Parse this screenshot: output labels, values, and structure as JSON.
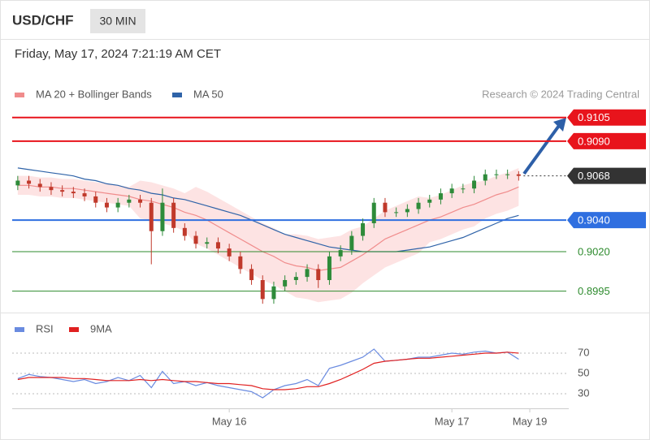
{
  "header": {
    "symbol": "USD/CHF",
    "interval": "30 MIN",
    "timestamp": "Friday, May 17, 2024 7:21:19 AM CET"
  },
  "chart_data": [
    {
      "type": "candlestick",
      "credit": "Research © 2024 Trading Central",
      "up_color": "#2e8b3a",
      "down_color": "#c0392b",
      "open": [
        0.9062,
        0.9065,
        0.9063,
        0.9061,
        0.9059,
        0.9058,
        0.9057,
        0.9055,
        0.9051,
        0.9048,
        0.9051,
        0.9053,
        0.9051,
        0.9033,
        0.9051,
        0.9035,
        0.903,
        0.9025,
        0.9026,
        0.9022,
        0.9017,
        0.9009,
        0.9002,
        0.899,
        0.8998,
        0.9002,
        0.9004,
        0.9009,
        0.9002,
        0.9017,
        0.9021,
        0.903,
        0.9038,
        0.9051,
        0.9045,
        0.9045,
        0.9047,
        0.9051,
        0.9053,
        0.9057,
        0.906,
        0.906,
        0.9065,
        0.9069,
        0.9069,
        0.9069,
        null,
        null,
        null,
        null
      ],
      "high": [
        0.9068,
        0.9068,
        0.9066,
        0.9064,
        0.9062,
        0.9061,
        0.906,
        0.9058,
        0.9054,
        0.9054,
        0.9056,
        0.9056,
        0.9054,
        0.906,
        0.9054,
        0.9038,
        0.9033,
        0.9029,
        0.9029,
        0.9025,
        0.902,
        0.9012,
        0.9005,
        0.9001,
        0.9005,
        0.9007,
        0.9012,
        0.9012,
        0.902,
        0.9024,
        0.9033,
        0.9041,
        0.9054,
        0.9054,
        0.9048,
        0.905,
        0.9054,
        0.9056,
        0.906,
        0.9063,
        0.9063,
        0.9068,
        0.9072,
        0.9072,
        0.9072,
        0.9071,
        null,
        null,
        null,
        null
      ],
      "low": [
        0.9059,
        0.906,
        0.9058,
        0.9056,
        0.9055,
        0.9054,
        0.9052,
        0.9048,
        0.9045,
        0.9045,
        0.9048,
        0.9048,
        0.9012,
        0.903,
        0.9032,
        0.9027,
        0.9022,
        0.9022,
        0.9019,
        0.9014,
        0.9006,
        0.8999,
        0.8987,
        0.8987,
        0.8995,
        0.8999,
        0.9001,
        0.8997,
        0.8999,
        0.9014,
        0.9018,
        0.9027,
        0.9035,
        0.9042,
        0.9042,
        0.9042,
        0.9044,
        0.9048,
        0.905,
        0.9054,
        0.9057,
        0.9057,
        0.9062,
        0.9066,
        0.9066,
        0.9065,
        null,
        null,
        null,
        null
      ],
      "close": [
        0.9065,
        0.9063,
        0.9061,
        0.9059,
        0.9058,
        0.9057,
        0.9055,
        0.9051,
        0.9048,
        0.9051,
        0.9053,
        0.9051,
        0.9033,
        0.9051,
        0.9035,
        0.903,
        0.9025,
        0.9026,
        0.9022,
        0.9017,
        0.9009,
        0.9002,
        0.899,
        0.8998,
        0.9002,
        0.9004,
        0.9009,
        0.9002,
        0.9017,
        0.9021,
        0.903,
        0.9038,
        0.9051,
        0.9045,
        0.9045,
        0.9047,
        0.9051,
        0.9053,
        0.9057,
        0.906,
        0.906,
        0.9065,
        0.9069,
        0.9069,
        0.9069,
        0.9068,
        null,
        null,
        null,
        null
      ],
      "series": [
        {
          "name": "MA 20 + Bollinger Bands",
          "color": "#f08c8c",
          "band_color": "#fde3e3",
          "values": [
            0.9062,
            0.9062,
            0.9061,
            0.9061,
            0.906,
            0.906,
            0.9059,
            0.9058,
            0.9057,
            0.9056,
            0.9055,
            0.9053,
            0.9052,
            0.905,
            0.9048,
            0.9045,
            0.9043,
            0.904,
            0.9036,
            0.9032,
            0.9028,
            0.9024,
            0.902,
            0.9017,
            0.9013,
            0.9011,
            0.901,
            0.9008,
            0.9009,
            0.901,
            0.9014,
            0.9018,
            0.9023,
            0.9028,
            0.9031,
            0.9034,
            0.9037,
            0.904,
            0.9042,
            0.9045,
            0.9048,
            0.905,
            0.9053,
            0.9056,
            0.9058,
            0.9061,
            null,
            null,
            null,
            null
          ],
          "upper": [
            0.9068,
            0.9068,
            0.9067,
            0.9067,
            0.9066,
            0.9066,
            0.9065,
            0.9064,
            0.9063,
            0.9062,
            0.9061,
            0.9065,
            0.9064,
            0.9062,
            0.906,
            0.9057,
            0.9061,
            0.9058,
            0.9054,
            0.905,
            0.9046,
            0.9042,
            0.9038,
            0.9035,
            0.9031,
            0.9031,
            0.903,
            0.9028,
            0.9029,
            0.903,
            0.9034,
            0.9036,
            0.9041,
            0.9046,
            0.9049,
            0.9052,
            0.9055,
            0.9054,
            0.9056,
            0.9059,
            0.9062,
            0.9064,
            0.9065,
            0.9068,
            0.907,
            0.9073,
            null,
            null,
            null,
            null
          ],
          "lower": [
            0.9056,
            0.9056,
            0.9055,
            0.9055,
            0.9054,
            0.9054,
            0.9053,
            0.9052,
            0.9051,
            0.905,
            0.9049,
            0.9041,
            0.904,
            0.9038,
            0.9036,
            0.9033,
            0.9025,
            0.9022,
            0.9018,
            0.9014,
            0.901,
            0.9006,
            0.9002,
            0.8999,
            0.8995,
            0.8991,
            0.899,
            0.8988,
            0.8989,
            0.899,
            0.8994,
            0.9,
            0.9005,
            0.901,
            0.9013,
            0.9016,
            0.9019,
            0.9026,
            0.9028,
            0.9031,
            0.9034,
            0.9036,
            0.9041,
            0.9044,
            0.9046,
            0.9049,
            null,
            null,
            null,
            null
          ]
        },
        {
          "name": "MA 50",
          "color": "#2f63a8",
          "values": [
            0.9073,
            0.9072,
            0.9071,
            0.907,
            0.9069,
            0.9068,
            0.9066,
            0.9065,
            0.9063,
            0.9062,
            0.906,
            0.9059,
            0.9057,
            0.9056,
            0.9054,
            0.9053,
            0.9051,
            0.9049,
            0.9047,
            0.9045,
            0.9043,
            0.904,
            0.9037,
            0.9034,
            0.9031,
            0.9029,
            0.9027,
            0.9025,
            0.9023,
            0.9022,
            0.9021,
            0.902,
            0.902,
            0.902,
            0.902,
            0.9021,
            0.9022,
            0.9023,
            0.9025,
            0.9027,
            0.9029,
            0.9032,
            0.9035,
            0.9038,
            0.9041,
            0.9043,
            null,
            null,
            null,
            null
          ]
        }
      ],
      "levels": [
        {
          "value": 0.9105,
          "color": "#e8141c",
          "line": "solid",
          "kind": "box"
        },
        {
          "value": 0.909,
          "label": "0.9090",
          "color": "#e8141c",
          "line": "solid",
          "kind": "box"
        },
        {
          "value": 0.9068,
          "color": "#333333",
          "line": "dotted",
          "kind": "box"
        },
        {
          "value": 0.904,
          "label": "0.9040",
          "color": "#2f6fe0",
          "line": "solid",
          "kind": "box"
        },
        {
          "value": 0.902,
          "label": "0.9020",
          "color": "#2e8b2e",
          "line": "thin",
          "kind": "text"
        },
        {
          "value": 0.8995,
          "color": "#2e8b2e",
          "line": "thin",
          "kind": "text"
        }
      ],
      "ylim": [
        0.8984,
        0.9128
      ]
    },
    {
      "type": "line",
      "categories": [
        null,
        null,
        null,
        null,
        null,
        null,
        null,
        null,
        null,
        null,
        null,
        null,
        null,
        null,
        null,
        null,
        null,
        null,
        null,
        "May 16",
        null,
        null,
        null,
        null,
        null,
        null,
        null,
        null,
        null,
        null,
        null,
        null,
        null,
        null,
        null,
        null,
        null,
        null,
        null,
        "May 17",
        null,
        null,
        null,
        null,
        null,
        null,
        "May 19",
        null,
        null,
        null
      ],
      "series": [
        {
          "name": "RSI",
          "color": "#6a8be0",
          "values": [
            45,
            49,
            47,
            46,
            44,
            42,
            44,
            40,
            42,
            46,
            43,
            48,
            36,
            52,
            40,
            42,
            38,
            41,
            38,
            36,
            34,
            32,
            26,
            34,
            38,
            40,
            44,
            38,
            55,
            58,
            62,
            66,
            74,
            62,
            63,
            64,
            66,
            66,
            68,
            70,
            69,
            71,
            72,
            70,
            71,
            64,
            null,
            null,
            null,
            null
          ]
        },
        {
          "name": "9MA",
          "color": "#e02020",
          "values": [
            44,
            46,
            46,
            46,
            46,
            45,
            45,
            44,
            43,
            43,
            43,
            44,
            43,
            44,
            43,
            42,
            42,
            41,
            40,
            40,
            39,
            38,
            35,
            34,
            34,
            35,
            37,
            37,
            40,
            44,
            49,
            54,
            60,
            62,
            63,
            64,
            65,
            65,
            66,
            67,
            68,
            69,
            70,
            70,
            71,
            70,
            null,
            null,
            null,
            null
          ]
        }
      ],
      "ylim": [
        18,
        86
      ],
      "yticks": [
        30,
        50,
        70
      ],
      "grid": true
    }
  ]
}
